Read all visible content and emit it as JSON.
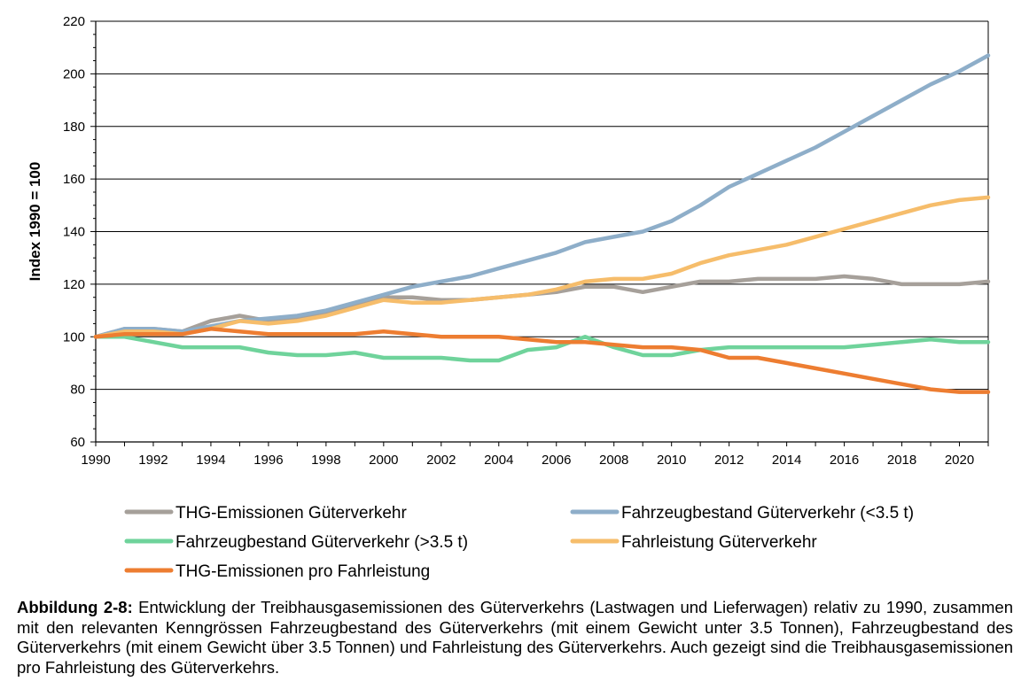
{
  "chart_data": {
    "type": "line",
    "ylabel": "Index 1990 = 100",
    "xlabel": "",
    "xlim": [
      1990,
      2021
    ],
    "ylim": [
      60,
      220
    ],
    "y_ticks": [
      60,
      80,
      100,
      120,
      140,
      160,
      180,
      200,
      220
    ],
    "x_tick_labels": [
      "1990",
      "1992",
      "1994",
      "1996",
      "1998",
      "2000",
      "2002",
      "2004",
      "2006",
      "2008",
      "2010",
      "2012",
      "2014",
      "2016",
      "2018",
      "2020"
    ],
    "grid": "horizontal",
    "legend_position": "bottom",
    "x": [
      1990,
      1991,
      1992,
      1993,
      1994,
      1995,
      1996,
      1997,
      1998,
      1999,
      2000,
      2001,
      2002,
      2003,
      2004,
      2005,
      2006,
      2007,
      2008,
      2009,
      2010,
      2011,
      2012,
      2013,
      2014,
      2015,
      2016,
      2017,
      2018,
      2019,
      2020,
      2021
    ],
    "series": [
      {
        "name": "THG-Emissionen Güterverkehr",
        "color": "#a6a09a",
        "values": [
          100,
          103,
          103,
          102,
          106,
          108,
          106,
          107,
          109,
          112,
          115,
          115,
          114,
          114,
          115,
          116,
          117,
          119,
          119,
          117,
          119,
          121,
          121,
          122,
          122,
          122,
          123,
          122,
          120,
          120,
          120,
          121
        ]
      },
      {
        "name": "Fahrzeugbestand Güterverkehr (<3.5 t)",
        "color": "#8eaec9",
        "values": [
          100,
          103,
          103,
          102,
          104,
          106,
          107,
          108,
          110,
          113,
          116,
          119,
          121,
          123,
          126,
          129,
          132,
          136,
          138,
          140,
          144,
          150,
          157,
          162,
          167,
          172,
          178,
          184,
          190,
          196,
          201,
          207
        ]
      },
      {
        "name": "Fahrzeugbestand Güterverkehr (>3.5 t)",
        "color": "#6fd39b",
        "values": [
          100,
          100,
          98,
          96,
          96,
          96,
          94,
          93,
          93,
          94,
          92,
          92,
          92,
          91,
          91,
          95,
          96,
          100,
          96,
          93,
          93,
          95,
          96,
          96,
          96,
          96,
          96,
          97,
          98,
          99,
          98,
          98
        ]
      },
      {
        "name": "Fahrleistung Güterverkehr",
        "color": "#f6bd6b",
        "values": [
          100,
          102,
          102,
          101,
          103,
          106,
          105,
          106,
          108,
          111,
          114,
          113,
          113,
          114,
          115,
          116,
          118,
          121,
          122,
          122,
          124,
          128,
          131,
          133,
          135,
          138,
          141,
          144,
          147,
          150,
          152,
          153
        ]
      },
      {
        "name": "THG-Emissionen pro Fahrleistung",
        "color": "#ed7d31",
        "values": [
          100,
          101,
          101,
          101,
          103,
          102,
          101,
          101,
          101,
          101,
          102,
          101,
          100,
          100,
          100,
          99,
          98,
          98,
          97,
          96,
          96,
          95,
          92,
          92,
          90,
          88,
          86,
          84,
          82,
          80,
          79,
          79
        ]
      }
    ]
  },
  "caption": {
    "label": "Abbildung 2-8:",
    "text": " Entwicklung der Treibhausgasemissionen des Güterverkehrs (Lastwagen und Lieferwagen) relativ zu 1990, zusammen mit den relevanten Kenngrössen Fahrzeugbestand des Güterverkehrs (mit einem Gewicht unter 3.5 Tonnen), Fahrzeugbestand des Güterverkehrs (mit einem Gewicht über 3.5 Tonnen) und Fahrleistung des Güterverkehrs. Auch gezeigt sind die Treibhausgasemissionen pro Fahrleistung des Güterverkehrs."
  }
}
